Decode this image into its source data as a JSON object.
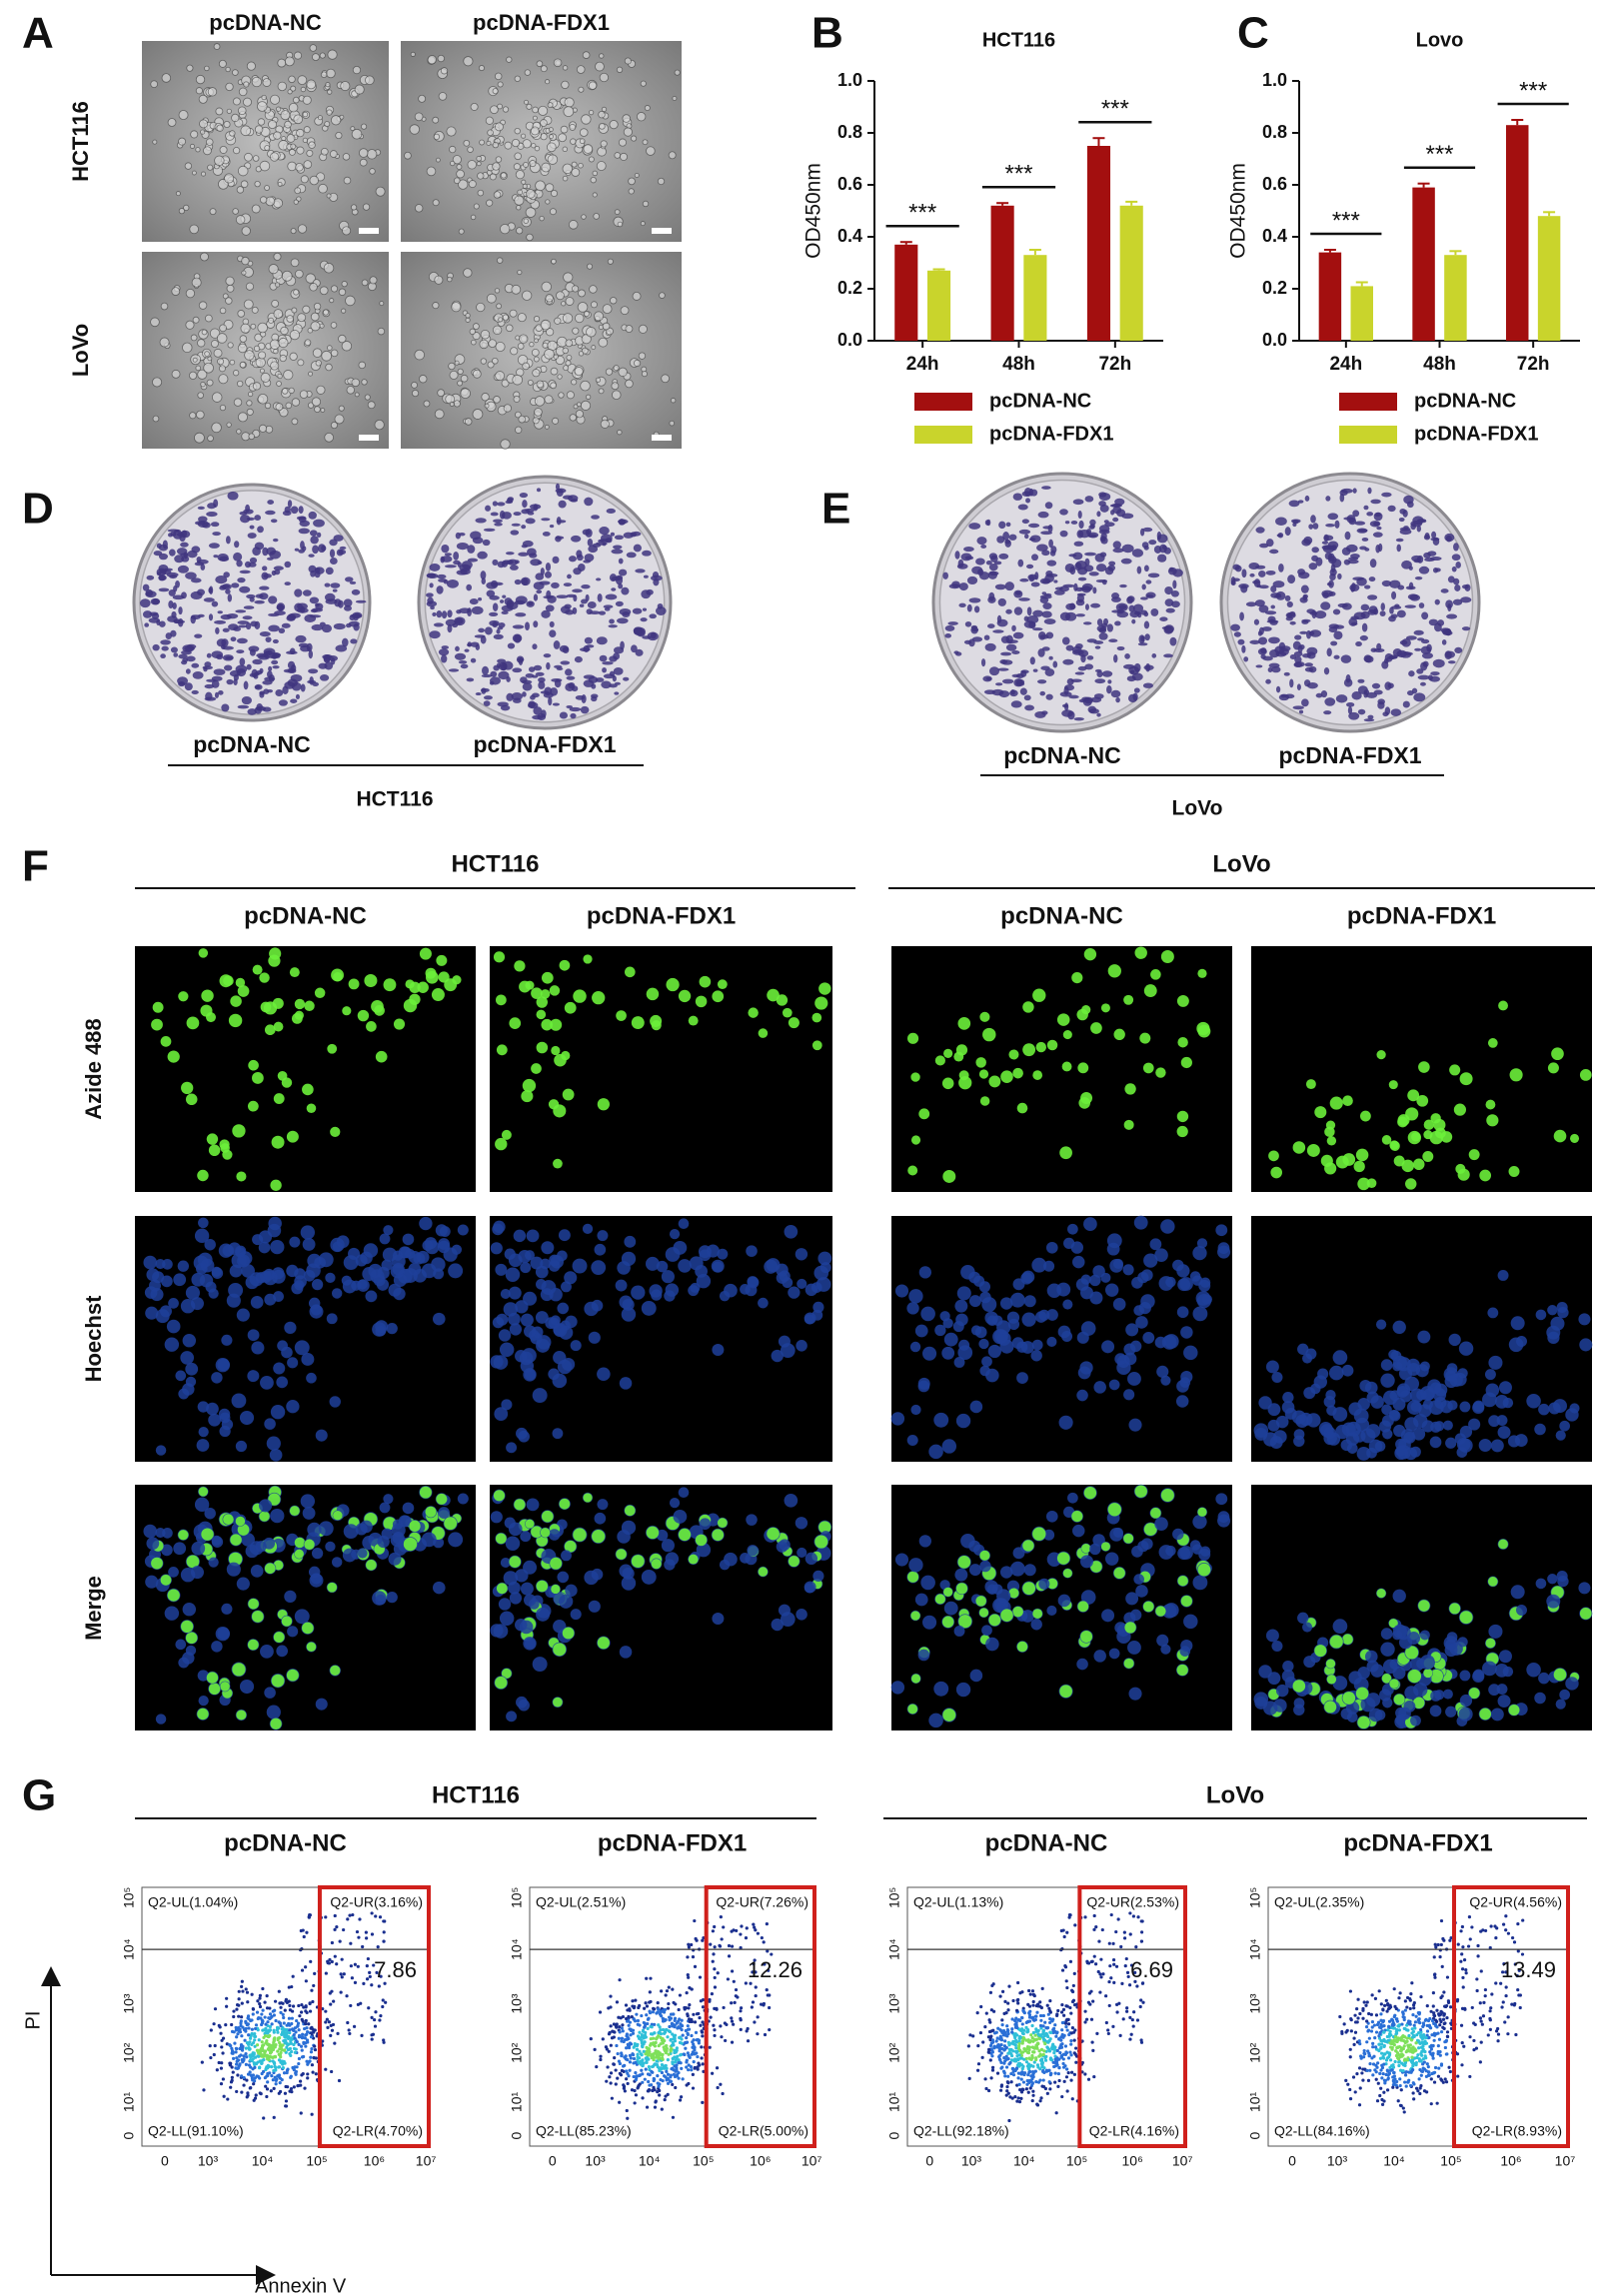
{
  "panel_labels": [
    "A",
    "B",
    "C",
    "D",
    "E",
    "F",
    "G"
  ],
  "panel_a": {
    "columns": [
      "pcDNA-NC",
      "pcDNA-FDX1"
    ],
    "rows": [
      "HCT116",
      "LoVo"
    ]
  },
  "chart_data": [
    {
      "type": "bar",
      "title": "HCT116",
      "y_label": "OD450nm",
      "categories": [
        "24h",
        "48h",
        "72h"
      ],
      "series": [
        {
          "name": "pcDNA-NC",
          "color": "#a30f0f",
          "values": [
            0.37,
            0.52,
            0.75
          ],
          "errors": [
            0.01,
            0.01,
            0.03
          ]
        },
        {
          "name": "pcDNA-FDX1",
          "color": "#c9d42c",
          "values": [
            0.27,
            0.33,
            0.52
          ],
          "errors": [
            0.005,
            0.02,
            0.015
          ]
        }
      ],
      "annotations": [
        "***",
        "***",
        "***"
      ],
      "ylim": [
        0,
        1
      ],
      "yticks": [
        {
          "value": 0,
          "label": "0.0"
        },
        0.2,
        0.4,
        0.6,
        0.8,
        {
          "value": 1,
          "label": "1.0"
        }
      ]
    },
    {
      "type": "bar",
      "title": "Lovo",
      "y_label": "OD450nm",
      "categories": [
        "24h",
        "48h",
        "72h"
      ],
      "series": [
        {
          "name": "pcDNA-NC",
          "color": "#a30f0f",
          "values": [
            0.34,
            0.59,
            0.83
          ],
          "errors": [
            0.01,
            0.015,
            0.02
          ]
        },
        {
          "name": "pcDNA-FDX1",
          "color": "#c9d42c",
          "values": [
            0.21,
            0.33,
            0.48
          ],
          "errors": [
            0.015,
            0.015,
            0.015
          ]
        }
      ],
      "annotations": [
        "***",
        "***",
        "***"
      ],
      "ylim": [
        0,
        1
      ],
      "yticks": [
        {
          "value": 0,
          "label": "0.0"
        },
        0.2,
        0.4,
        0.6,
        0.8,
        {
          "value": 1,
          "label": "1.0"
        }
      ]
    }
  ],
  "panel_d": {
    "samples": [
      "pcDNA-NC",
      "pcDNA-FDX1"
    ],
    "cell_line": "HCT116"
  },
  "panel_e": {
    "samples": [
      "pcDNA-NC",
      "pcDNA-FDX1"
    ],
    "cell_line": "LoVo"
  },
  "panel_f": {
    "groups": [
      {
        "name": "HCT116",
        "columns": [
          "pcDNA-NC",
          "pcDNA-FDX1"
        ]
      },
      {
        "name": "LoVo",
        "columns": [
          "pcDNA-NC",
          "pcDNA-FDX1"
        ]
      }
    ],
    "rows": [
      "Azide 488",
      "Hoechst",
      "Merge"
    ]
  },
  "panel_g": {
    "groups": [
      {
        "name": "HCT116",
        "columns": [
          "pcDNA-NC",
          "pcDNA-FDX1"
        ]
      },
      {
        "name": "LoVo",
        "columns": [
          "pcDNA-NC",
          "pcDNA-FDX1"
        ]
      }
    ],
    "plots": [
      {
        "ul": "Q2-UL(1.04%)",
        "ur": "Q2-UR(3.16%)",
        "ll": "Q2-LL(91.10%)",
        "lr": "Q2-LR(4.70%)",
        "total": 7.86
      },
      {
        "ul": "Q2-UL(2.51%)",
        "ur": "Q2-UR(7.26%)",
        "ll": "Q2-LL(85.23%)",
        "lr": "Q2-LR(5.00%)",
        "total": 12.26
      },
      {
        "ul": "Q2-UL(1.13%)",
        "ur": "Q2-UR(2.53%)",
        "ll": "Q2-LL(92.18%)",
        "lr": "Q2-LR(4.16%)",
        "total": 6.69
      },
      {
        "ul": "Q2-UL(2.35%)",
        "ur": "Q2-UR(4.56%)",
        "ll": "Q2-LL(84.16%)",
        "lr": "Q2-LR(8.93%)",
        "total": 13.49
      }
    ],
    "x_ticks": [
      "0",
      "10³",
      "10⁴",
      "10⁵",
      "10⁶",
      "10⁷"
    ],
    "y_ticks": [
      "10⁵",
      "10⁴",
      "10³",
      "10²",
      "10¹",
      "0"
    ],
    "y_axis": "PI",
    "x_axis": "Annexin V"
  }
}
